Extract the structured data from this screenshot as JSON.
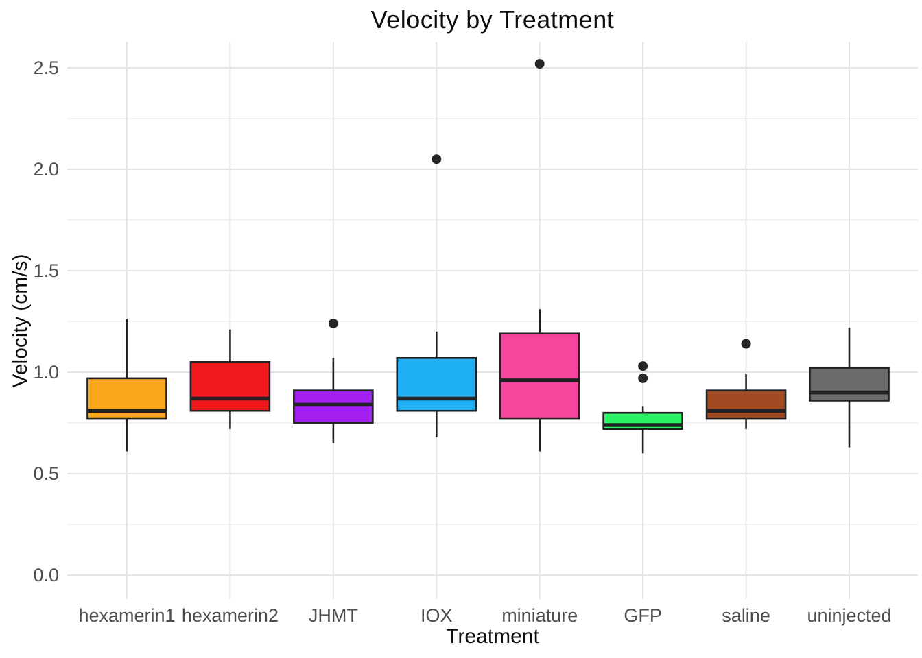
{
  "chart_data": {
    "type": "boxplot",
    "title": "Velocity by Treatment",
    "xlabel": "Treatment",
    "ylabel": "Velocity (cm/s)",
    "ylim": [
      -0.12,
      2.63
    ],
    "grid": true,
    "legend_position": "none",
    "y_tick_values": [
      0.0,
      0.5,
      1.0,
      1.5,
      2.0,
      2.5
    ],
    "y_tick_labels": [
      "0.0",
      "0.5",
      "1.0",
      "1.5",
      "2.0",
      "2.5"
    ],
    "y_minor_tick_values": [
      0.25,
      0.75,
      1.25,
      1.75,
      2.25
    ],
    "categories": [
      "hexamerin1",
      "hexamerin2",
      "JHMT",
      "IOX",
      "miniature",
      "GFP",
      "saline",
      "uninjected"
    ],
    "series": [
      {
        "name": "hexamerin1",
        "color": "#F9A71B",
        "whisker_low": 0.61,
        "q1": 0.77,
        "median": 0.81,
        "q3": 0.97,
        "whisker_high": 1.26,
        "outliers": []
      },
      {
        "name": "hexamerin2",
        "color": "#F2191E",
        "whisker_low": 0.72,
        "q1": 0.81,
        "median": 0.87,
        "q3": 1.05,
        "whisker_high": 1.21,
        "outliers": []
      },
      {
        "name": "JHMT",
        "color": "#A420F0",
        "whisker_low": 0.65,
        "q1": 0.75,
        "median": 0.84,
        "q3": 0.91,
        "whisker_high": 1.07,
        "outliers": [
          1.24
        ]
      },
      {
        "name": "IOX",
        "color": "#1FB0F6",
        "whisker_low": 0.68,
        "q1": 0.81,
        "median": 0.87,
        "q3": 1.07,
        "whisker_high": 1.2,
        "outliers": [
          2.05
        ]
      },
      {
        "name": "miniature",
        "color": "#F7459E",
        "whisker_low": 0.61,
        "q1": 0.77,
        "median": 0.96,
        "q3": 1.19,
        "whisker_high": 1.31,
        "outliers": [
          2.52
        ]
      },
      {
        "name": "GFP",
        "color": "#2BF463",
        "whisker_low": 0.6,
        "q1": 0.72,
        "median": 0.74,
        "q3": 0.8,
        "whisker_high": 0.83,
        "outliers": [
          0.97,
          1.03
        ]
      },
      {
        "name": "saline",
        "color": "#A04B22",
        "whisker_low": 0.72,
        "q1": 0.77,
        "median": 0.81,
        "q3": 0.91,
        "whisker_high": 0.99,
        "outliers": [
          1.14
        ]
      },
      {
        "name": "uninjected",
        "color": "#6B6B6B",
        "whisker_low": 0.63,
        "q1": 0.86,
        "median": 0.9,
        "q3": 1.02,
        "whisker_high": 1.22,
        "outliers": []
      }
    ]
  },
  "style": {
    "background": "#FFFFFF",
    "grid_major_color": "#E4E4E4",
    "grid_minor_color": "#EEEEEE",
    "box_border_color": "#212121",
    "median_color": "#212121",
    "whisker_color": "#212121",
    "outlier_color": "#262626",
    "tick_label_color": "#4D4D4D",
    "title_color": "#0D0D0D"
  }
}
